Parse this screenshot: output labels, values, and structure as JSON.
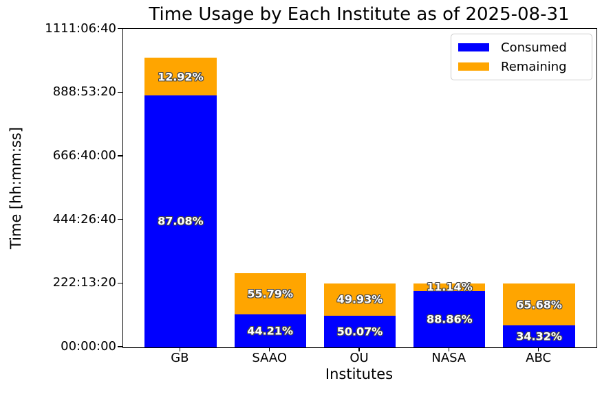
{
  "figure": {
    "title": "Time Usage by Each Institute as of 2025-08-31",
    "xlabel": "Institutes",
    "ylabel": "Time [hh:mm:ss]"
  },
  "legend": {
    "items": [
      {
        "label": "Consumed",
        "color": "#0000ff"
      },
      {
        "label": "Remaining",
        "color": "#ffa500"
      }
    ]
  },
  "chart_data": {
    "type": "bar",
    "stacked": true,
    "title": "Time Usage by Each Institute as of 2025-08-31",
    "xlabel": "Institutes",
    "ylabel": "Time [hh:mm:ss]",
    "categories": [
      "GB",
      "SAAO",
      "OU",
      "NASA",
      "ABC"
    ],
    "series": [
      {
        "name": "Consumed",
        "color": "#0000ff",
        "pct": [
          87.08,
          44.21,
          50.07,
          88.86,
          34.32
        ],
        "labels": [
          "87.08%",
          "44.21%",
          "50.07%",
          "88.86%",
          "34.32%"
        ]
      },
      {
        "name": "Remaining",
        "color": "#ffa500",
        "pct": [
          12.92,
          55.79,
          49.93,
          11.14,
          65.68
        ],
        "labels": [
          "12.92%",
          "55.79%",
          "49.93%",
          "11.14%",
          "65.68%"
        ]
      }
    ],
    "totals_seconds_est": [
      3640000,
      930000,
      800000,
      800000,
      800000
    ],
    "ylim_seconds": [
      0,
      4005000
    ],
    "yticks": [
      {
        "value": 0,
        "label": "00:00:00"
      },
      {
        "value": 800000,
        "label": "222:13:20"
      },
      {
        "value": 1600000,
        "label": "444:26:40"
      },
      {
        "value": 2400000,
        "label": "666:40:00"
      },
      {
        "value": 3200000,
        "label": "888:53:20"
      },
      {
        "value": 4000000,
        "label": "1111:06:40"
      }
    ],
    "legend_position": "upper right",
    "grid": false,
    "bar_label_color": "#ffffff",
    "bar_label_outline": "#474747"
  }
}
